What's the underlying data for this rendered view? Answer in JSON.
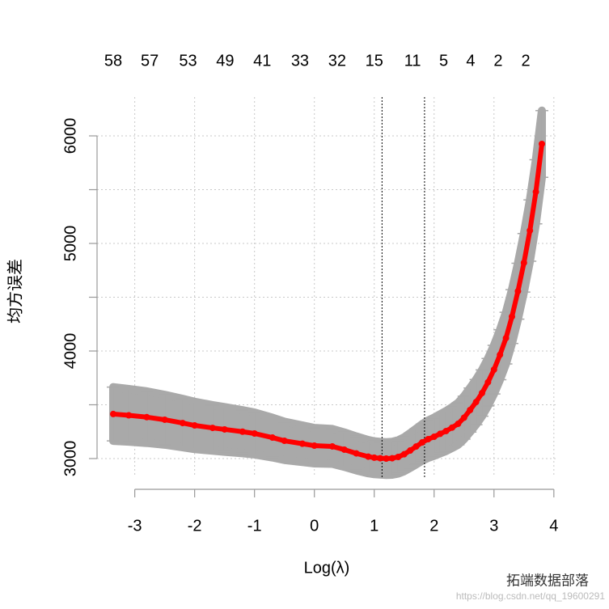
{
  "chart_data": {
    "type": "errorbar",
    "xlabel": "Log(λ)",
    "ylabel": "均方误差",
    "xlim": [
      -3.63,
      4.07
    ],
    "ylim": [
      2827,
      6361
    ],
    "xticks": [
      -3,
      -2,
      -1,
      0,
      1,
      2,
      3,
      4
    ],
    "yticks": [
      3000,
      4000,
      5000,
      6000
    ],
    "yminor_ticks": [
      3500,
      4500,
      5500
    ],
    "grid": true,
    "vlines": [
      1.13,
      1.84
    ],
    "top_ticks": [
      {
        "value": -3.36,
        "label": "58"
      },
      {
        "value": -2.75,
        "label": "57"
      },
      {
        "value": -2.11,
        "label": "53"
      },
      {
        "value": -1.49,
        "label": "49"
      },
      {
        "value": -0.87,
        "label": "41"
      },
      {
        "value": -0.24,
        "label": "33"
      },
      {
        "value": 0.38,
        "label": "32"
      },
      {
        "value": 1.0,
        "label": "15"
      },
      {
        "value": 1.64,
        "label": "11"
      },
      {
        "value": 2.16,
        "label": "5"
      },
      {
        "value": 2.61,
        "label": "4"
      },
      {
        "value": 3.07,
        "label": "2"
      },
      {
        "value": 3.53,
        "label": "2"
      }
    ],
    "x": [
      -3.36,
      -3.1,
      -2.8,
      -2.5,
      -2.2,
      -2.0,
      -1.7,
      -1.5,
      -1.2,
      -1.0,
      -0.7,
      -0.5,
      -0.2,
      0.0,
      0.3,
      0.5,
      0.7,
      0.9,
      1.0,
      1.1,
      1.2,
      1.3,
      1.4,
      1.5,
      1.6,
      1.7,
      1.8,
      1.9,
      2.0,
      2.1,
      2.2,
      2.3,
      2.4,
      2.5,
      2.6,
      2.7,
      2.8,
      2.9,
      3.0,
      3.1,
      3.2,
      3.3,
      3.4,
      3.5,
      3.6,
      3.7,
      3.8
    ],
    "series": [
      {
        "color": "#ff0000",
        "errcolor": "#a9a9a9",
        "values": [
          3414,
          3402,
          3385,
          3361,
          3330,
          3308,
          3285,
          3271,
          3250,
          3233,
          3195,
          3165,
          3138,
          3120,
          3113,
          3083,
          3048,
          3018,
          3008,
          3003,
          3000,
          3003,
          3015,
          3040,
          3075,
          3112,
          3150,
          3180,
          3203,
          3230,
          3256,
          3288,
          3323,
          3380,
          3451,
          3525,
          3609,
          3710,
          3827,
          3965,
          4120,
          4320,
          4556,
          4820,
          5120,
          5480,
          5925
        ],
        "errors": [
          250,
          245,
          240,
          232,
          225,
          220,
          212,
          208,
          200,
          195,
          185,
          178,
          170,
          165,
          162,
          160,
          158,
          155,
          153,
          152,
          152,
          153,
          155,
          158,
          162,
          166,
          170,
          174,
          178,
          182,
          186,
          190,
          195,
          200,
          205,
          210,
          215,
          220,
          226,
          232,
          240,
          250,
          260,
          272,
          285,
          298,
          310
        ]
      }
    ],
    "watermark": "拓端数据部落",
    "url": "https://blog.csdn.net/qq_19600291"
  }
}
